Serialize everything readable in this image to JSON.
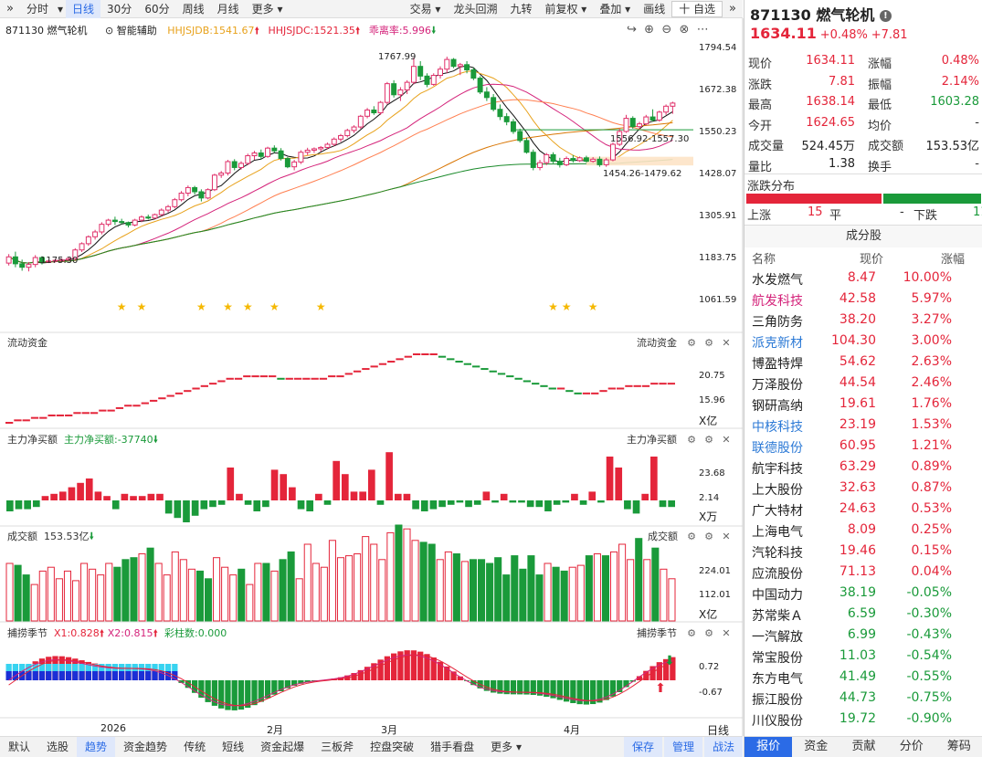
{
  "toolbar": {
    "left": [
      "分时",
      "日线",
      "30分",
      "60分",
      "周线",
      "月线",
      "更多"
    ],
    "right": [
      "交易",
      "龙头回溯",
      "九转",
      "前复权",
      "叠加",
      "画线",
      "十 自选"
    ]
  },
  "chart_data": {
    "type": "candlestick",
    "kline": [
      [
        1172,
        1198,
        1165,
        1190
      ],
      [
        1190,
        1205,
        1160,
        1170
      ],
      [
        1170,
        1182,
        1150,
        1160
      ],
      [
        1160,
        1175,
        1148,
        1168
      ],
      [
        1168,
        1195,
        1160,
        1188
      ],
      [
        1188,
        1192,
        1168,
        1176
      ],
      [
        1176,
        1182,
        1172,
        1178
      ],
      [
        1178,
        1184,
        1174,
        1180
      ],
      [
        1180,
        1186,
        1175,
        1181
      ],
      [
        1181,
        1188,
        1178,
        1185
      ],
      [
        1185,
        1215,
        1180,
        1210
      ],
      [
        1210,
        1232,
        1204,
        1228
      ],
      [
        1228,
        1252,
        1222,
        1248
      ],
      [
        1248,
        1268,
        1240,
        1262
      ],
      [
        1262,
        1290,
        1255,
        1284
      ],
      [
        1284,
        1300,
        1278,
        1296
      ],
      [
        1296,
        1306,
        1282,
        1292
      ],
      [
        1292,
        1300,
        1284,
        1289
      ],
      [
        1289,
        1292,
        1275,
        1282
      ],
      [
        1282,
        1300,
        1278,
        1296
      ],
      [
        1296,
        1310,
        1290,
        1305
      ],
      [
        1305,
        1312,
        1298,
        1302
      ],
      [
        1302,
        1315,
        1300,
        1312
      ],
      [
        1312,
        1330,
        1308,
        1325
      ],
      [
        1325,
        1340,
        1318,
        1335
      ],
      [
        1335,
        1360,
        1330,
        1355
      ],
      [
        1355,
        1380,
        1350,
        1374
      ],
      [
        1374,
        1396,
        1365,
        1390
      ],
      [
        1390,
        1395,
        1370,
        1378
      ],
      [
        1378,
        1385,
        1350,
        1360
      ],
      [
        1360,
        1388,
        1356,
        1384
      ],
      [
        1384,
        1430,
        1380,
        1426
      ],
      [
        1426,
        1438,
        1418,
        1432
      ],
      [
        1432,
        1470,
        1425,
        1465
      ],
      [
        1465,
        1472,
        1440,
        1448
      ],
      [
        1448,
        1466,
        1442,
        1460
      ],
      [
        1460,
        1488,
        1455,
        1482
      ],
      [
        1482,
        1496,
        1470,
        1490
      ],
      [
        1490,
        1500,
        1472,
        1480
      ],
      [
        1480,
        1508,
        1476,
        1504
      ],
      [
        1504,
        1512,
        1490,
        1496
      ],
      [
        1496,
        1504,
        1468,
        1474
      ],
      [
        1474,
        1478,
        1446,
        1450
      ],
      [
        1450,
        1470,
        1440,
        1464
      ],
      [
        1464,
        1498,
        1458,
        1492
      ],
      [
        1492,
        1505,
        1484,
        1498
      ],
      [
        1498,
        1506,
        1490,
        1502
      ],
      [
        1502,
        1510,
        1494,
        1506
      ],
      [
        1506,
        1520,
        1500,
        1515
      ],
      [
        1515,
        1535,
        1510,
        1530
      ],
      [
        1530,
        1545,
        1522,
        1540
      ],
      [
        1540,
        1560,
        1535,
        1555
      ],
      [
        1555,
        1570,
        1548,
        1565
      ],
      [
        1565,
        1600,
        1560,
        1596
      ],
      [
        1596,
        1620,
        1590,
        1614
      ],
      [
        1614,
        1625,
        1600,
        1606
      ],
      [
        1606,
        1640,
        1600,
        1636
      ],
      [
        1636,
        1695,
        1630,
        1690
      ],
      [
        1690,
        1700,
        1650,
        1658
      ],
      [
        1658,
        1680,
        1640,
        1672
      ],
      [
        1672,
        1700,
        1660,
        1694
      ],
      [
        1694,
        1765,
        1688,
        1740
      ],
      [
        1740,
        1755,
        1700,
        1712
      ],
      [
        1712,
        1720,
        1680,
        1688
      ],
      [
        1688,
        1720,
        1684,
        1714
      ],
      [
        1714,
        1740,
        1705,
        1732
      ],
      [
        1732,
        1768,
        1720,
        1760
      ],
      [
        1760,
        1764,
        1735,
        1740
      ],
      [
        1740,
        1750,
        1715,
        1745
      ],
      [
        1745,
        1755,
        1720,
        1730
      ],
      [
        1730,
        1736,
        1700,
        1706
      ],
      [
        1706,
        1712,
        1660,
        1666
      ],
      [
        1666,
        1680,
        1640,
        1650
      ],
      [
        1650,
        1660,
        1610,
        1616
      ],
      [
        1616,
        1630,
        1585,
        1595
      ],
      [
        1595,
        1605,
        1570,
        1580
      ],
      [
        1580,
        1588,
        1545,
        1552
      ],
      [
        1552,
        1560,
        1520,
        1526
      ],
      [
        1526,
        1534,
        1488,
        1492
      ],
      [
        1492,
        1500,
        1440,
        1448
      ],
      [
        1448,
        1470,
        1440,
        1462
      ],
      [
        1462,
        1490,
        1455,
        1485
      ],
      [
        1485,
        1492,
        1460,
        1466
      ],
      [
        1466,
        1476,
        1448,
        1456
      ],
      [
        1456,
        1480,
        1452,
        1474
      ],
      [
        1474,
        1484,
        1462,
        1468
      ],
      [
        1468,
        1480,
        1464,
        1476
      ],
      [
        1476,
        1482,
        1462,
        1466
      ],
      [
        1466,
        1478,
        1462,
        1472
      ],
      [
        1472,
        1480,
        1450,
        1456
      ],
      [
        1456,
        1476,
        1450,
        1470
      ],
      [
        1470,
        1520,
        1466,
        1515
      ],
      [
        1515,
        1560,
        1510,
        1552
      ],
      [
        1552,
        1600,
        1548,
        1590
      ],
      [
        1590,
        1596,
        1560,
        1566
      ],
      [
        1566,
        1580,
        1560,
        1574
      ],
      [
        1574,
        1600,
        1570,
        1594
      ],
      [
        1594,
        1616,
        1580,
        1585
      ],
      [
        1585,
        1612,
        1580,
        1608
      ],
      [
        1608,
        1630,
        1600,
        1625
      ],
      [
        1625,
        1638,
        1603,
        1634
      ]
    ],
    "ma_periods": [
      5,
      10,
      20,
      30,
      60,
      120
    ],
    "price_labels": [
      "1794.54",
      "1672.38",
      "1550.23",
      "1428.07",
      "1305.91",
      "1183.75",
      "1061.59"
    ],
    "ylim": [
      1061.59,
      1794.54
    ],
    "annotations": [
      "1767.99",
      "1175.30",
      "1556.92-1557.30",
      "1454.26-1479.62"
    ],
    "star_positions": [
      17,
      20,
      29,
      33,
      36,
      40,
      47,
      82,
      84,
      88
    ],
    "x_labels": [
      "2026",
      "2月",
      "3月",
      "4月",
      "日线"
    ]
  },
  "header": {
    "tag": "871130 燃气轮机",
    "assist": "智能辅助",
    "hhjsjdb": "HHJSJDB:1541.67",
    "hhjsjdc": "HHJSJDC:1521.35",
    "dev": "乖离率:5.996"
  },
  "panels": {
    "flow": {
      "title": "流动资金",
      "ticks": [
        "20.75",
        "15.96",
        "X亿"
      ],
      "values": [
        -2,
        -1,
        -1,
        0,
        0,
        1,
        1,
        1,
        2,
        2,
        2,
        3,
        3,
        4,
        5,
        5,
        6,
        7,
        8,
        9,
        10,
        11,
        12,
        13,
        14,
        15,
        16,
        16,
        17,
        17,
        17,
        17,
        16,
        16,
        16,
        16,
        16,
        16,
        17,
        17,
        18,
        19,
        20,
        21,
        22,
        23,
        24,
        25,
        26,
        26,
        26,
        25,
        24,
        23,
        22,
        21,
        20,
        19,
        18,
        17,
        16,
        15,
        14,
        13,
        12,
        12,
        11,
        10,
        10,
        10,
        11,
        12,
        12,
        13,
        13,
        13,
        14,
        14,
        14
      ]
    },
    "main": {
      "title": "主力净买额",
      "value_label": "主力净买额:-37740",
      "ticks": [
        "23.68",
        "2.14",
        "X万"
      ],
      "values": [
        -5,
        -4,
        -4,
        -3,
        2,
        3,
        4,
        6,
        8,
        10,
        4,
        2,
        -4,
        3,
        2,
        2,
        3,
        3,
        -6,
        -8,
        -10,
        -7,
        -4,
        -3,
        -2,
        15,
        3,
        -2,
        -5,
        -3,
        14,
        12,
        6,
        -4,
        -5,
        3,
        -2,
        18,
        12,
        4,
        4,
        14,
        -2,
        22,
        3,
        3,
        -4,
        -5,
        -4,
        -3,
        -2,
        -1,
        -3,
        -2,
        4,
        -1,
        3,
        -1,
        -1,
        -3,
        -3,
        -5,
        -2,
        -1,
        3,
        -2,
        4,
        -1,
        20,
        15,
        -4,
        -6,
        3,
        20,
        -3,
        -3
      ]
    },
    "vol": {
      "title": "成交额",
      "value_label": "153.53亿",
      "ticks": [
        "224.01",
        "112.01",
        "X亿"
      ],
      "values": [
        150,
        145,
        120,
        95,
        130,
        140,
        110,
        130,
        105,
        150,
        135,
        120,
        150,
        140,
        160,
        165,
        175,
        190,
        150,
        120,
        180,
        160,
        135,
        130,
        110,
        165,
        140,
        120,
        135,
        95,
        150,
        150,
        130,
        160,
        180,
        110,
        200,
        150,
        140,
        210,
        165,
        170,
        175,
        220,
        200,
        160,
        230,
        250,
        240,
        210,
        205,
        200,
        160,
        180,
        175,
        155,
        160,
        160,
        150,
        165,
        120,
        170,
        135,
        170,
        120,
        150,
        140,
        130,
        140,
        145,
        170,
        175,
        170,
        180,
        200,
        160,
        215,
        160,
        190,
        135,
        110
      ]
    },
    "season": {
      "title": "捕捞季节",
      "x1": "X1:0.828",
      "x2": "X2:0.815",
      "bar": "彩柱数:0.000",
      "ticks": [
        "0.72",
        "-0.67"
      ]
    }
  },
  "bottom": {
    "tabs": [
      "默认",
      "选股",
      "趋势",
      "资金趋势",
      "传统",
      "短线",
      "资金起爆",
      "三板斧",
      "控盘突破",
      "猎手看盘",
      "更多"
    ],
    "right": [
      "保存",
      "管理",
      "战法"
    ]
  },
  "quote": {
    "code": "871130 燃气轮机",
    "price": "1634.11",
    "pct": "+0.48%",
    "chg": "+7.81",
    "rows": [
      [
        "现价",
        "1634.11",
        "涨幅",
        "0.48%"
      ],
      [
        "涨跌",
        "7.81",
        "振幅",
        "2.14%"
      ],
      [
        "最高",
        "1638.14",
        "最低",
        "1603.28"
      ],
      [
        "今开",
        "1624.65",
        "均价",
        "-"
      ],
      [
        "成交量",
        "524.45万",
        "成交额",
        "153.53亿"
      ],
      [
        "量比",
        "1.38",
        "换手",
        "-"
      ]
    ],
    "dist_title": "涨跌分布",
    "up_label": "上涨",
    "up_count": "15",
    "flat_label": "平",
    "flat_count": "-",
    "down_label": "下跌",
    "down_count": "11",
    "constituents_title": "成分股",
    "headers": [
      "名称",
      "现价",
      "涨幅"
    ],
    "stocks": [
      [
        "水发燃气",
        "8.47",
        "10.00%"
      ],
      [
        "航发科技",
        "42.58",
        "5.97%"
      ],
      [
        "三角防务",
        "38.20",
        "3.27%"
      ],
      [
        "派克新材",
        "104.30",
        "3.00%"
      ],
      [
        "博盈特焊",
        "54.62",
        "2.63%"
      ],
      [
        "万泽股份",
        "44.54",
        "2.46%"
      ],
      [
        "钢研高纳",
        "19.61",
        "1.76%"
      ],
      [
        "中核科技",
        "23.19",
        "1.53%"
      ],
      [
        "联德股份",
        "60.95",
        "1.21%"
      ],
      [
        "航宇科技",
        "63.29",
        "0.89%"
      ],
      [
        "上大股份",
        "32.63",
        "0.87%"
      ],
      [
        "广大特材",
        "24.63",
        "0.53%"
      ],
      [
        "上海电气",
        "8.09",
        "0.25%"
      ],
      [
        "汽轮科技",
        "19.46",
        "0.15%"
      ],
      [
        "应流股份",
        "71.13",
        "0.04%"
      ],
      [
        "中国动力",
        "38.19",
        "-0.05%"
      ],
      [
        "苏常柴Ａ",
        "6.59",
        "-0.30%"
      ],
      [
        "一汽解放",
        "6.99",
        "-0.43%"
      ],
      [
        "常宝股份",
        "11.03",
        "-0.54%"
      ],
      [
        "东方电气",
        "41.49",
        "-0.55%"
      ],
      [
        "振江股份",
        "44.73",
        "-0.75%"
      ],
      [
        "川仪股份",
        "19.72",
        "-0.90%"
      ]
    ],
    "name_colors": [
      "#222",
      "#d4237a",
      "#222",
      "#2d7ad6",
      "#222",
      "#222",
      "#222",
      "#2d7ad6",
      "#2d7ad6",
      "#222",
      "#222",
      "#222",
      "#222",
      "#222",
      "#222",
      "#222",
      "#222",
      "#222",
      "#222",
      "#222",
      "#222",
      "#222"
    ],
    "tabs": [
      "报价",
      "资金",
      "贡献",
      "分价",
      "筹码"
    ]
  }
}
